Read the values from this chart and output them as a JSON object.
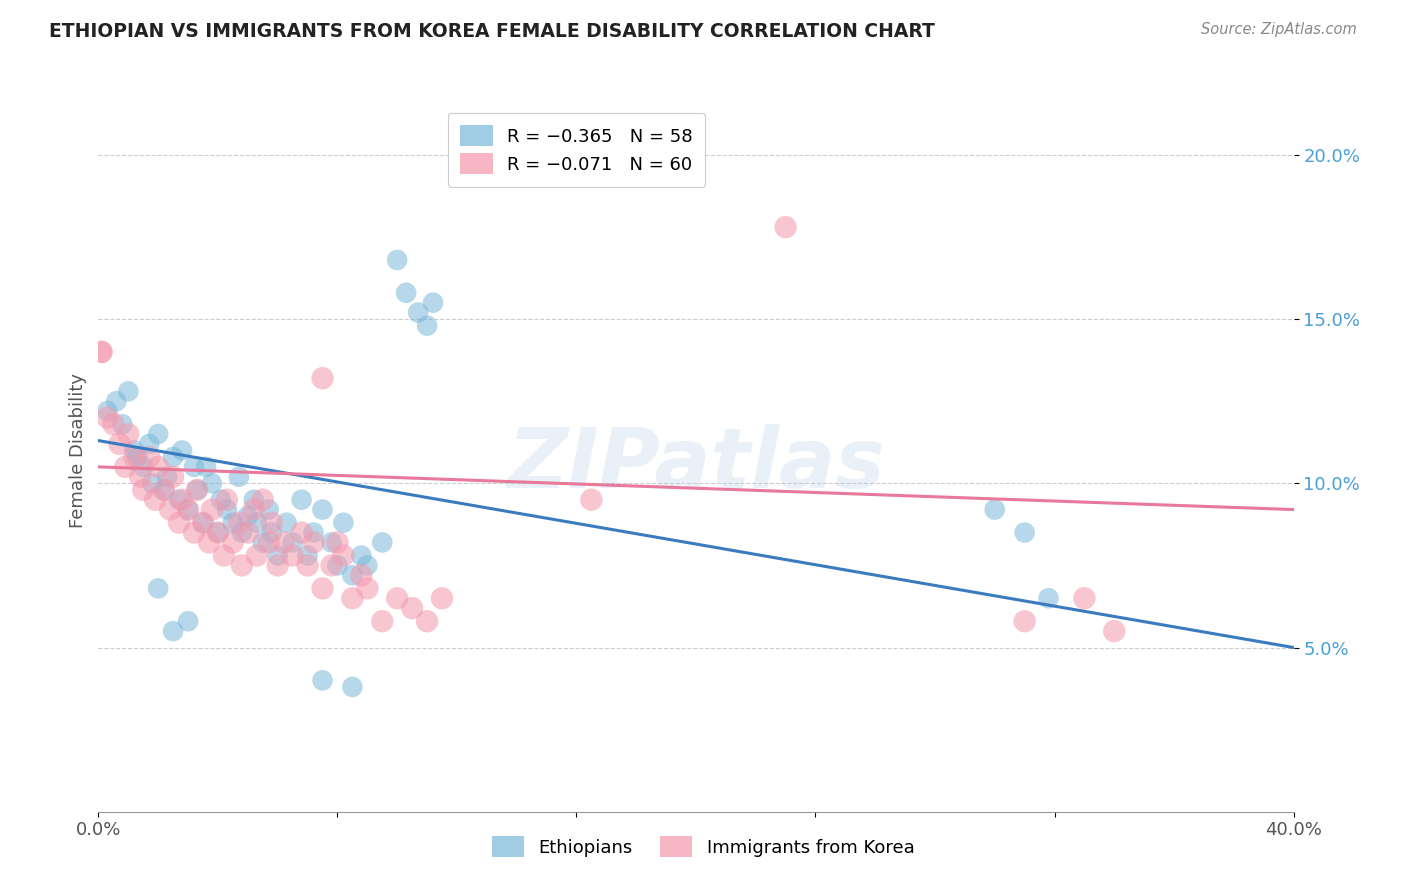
{
  "title": "ETHIOPIAN VS IMMIGRANTS FROM KOREA FEMALE DISABILITY CORRELATION CHART",
  "source": "Source: ZipAtlas.com",
  "ylabel": "Female Disability",
  "xlim": [
    0.0,
    0.4
  ],
  "ylim": [
    0.0,
    0.22
  ],
  "yticks": [
    0.05,
    0.1,
    0.15,
    0.2
  ],
  "blue_color": "#7ab8d9",
  "pink_color": "#f497ac",
  "blue_line_color": "#3a7bbf",
  "pink_line_color": "#e8799a",
  "watermark": "ZIPatlas",
  "background_color": "#ffffff",
  "ethiopians_data": [
    [
      0.003,
      0.122
    ],
    [
      0.006,
      0.125
    ],
    [
      0.008,
      0.118
    ],
    [
      0.01,
      0.128
    ],
    [
      0.012,
      0.11
    ],
    [
      0.013,
      0.108
    ],
    [
      0.015,
      0.105
    ],
    [
      0.017,
      0.112
    ],
    [
      0.018,
      0.1
    ],
    [
      0.02,
      0.115
    ],
    [
      0.022,
      0.098
    ],
    [
      0.023,
      0.102
    ],
    [
      0.025,
      0.108
    ],
    [
      0.027,
      0.095
    ],
    [
      0.028,
      0.11
    ],
    [
      0.03,
      0.092
    ],
    [
      0.032,
      0.105
    ],
    [
      0.033,
      0.098
    ],
    [
      0.035,
      0.088
    ],
    [
      0.036,
      0.105
    ],
    [
      0.038,
      0.1
    ],
    [
      0.04,
      0.085
    ],
    [
      0.041,
      0.095
    ],
    [
      0.043,
      0.092
    ],
    [
      0.045,
      0.088
    ],
    [
      0.047,
      0.102
    ],
    [
      0.048,
      0.085
    ],
    [
      0.05,
      0.09
    ],
    [
      0.052,
      0.095
    ],
    [
      0.053,
      0.088
    ],
    [
      0.055,
      0.082
    ],
    [
      0.057,
      0.092
    ],
    [
      0.058,
      0.085
    ],
    [
      0.06,
      0.078
    ],
    [
      0.063,
      0.088
    ],
    [
      0.065,
      0.082
    ],
    [
      0.068,
      0.095
    ],
    [
      0.07,
      0.078
    ],
    [
      0.072,
      0.085
    ],
    [
      0.075,
      0.092
    ],
    [
      0.078,
      0.082
    ],
    [
      0.08,
      0.075
    ],
    [
      0.082,
      0.088
    ],
    [
      0.085,
      0.072
    ],
    [
      0.088,
      0.078
    ],
    [
      0.09,
      0.075
    ],
    [
      0.095,
      0.082
    ],
    [
      0.1,
      0.168
    ],
    [
      0.103,
      0.158
    ],
    [
      0.107,
      0.152
    ],
    [
      0.11,
      0.148
    ],
    [
      0.112,
      0.155
    ],
    [
      0.02,
      0.068
    ],
    [
      0.025,
      0.055
    ],
    [
      0.03,
      0.058
    ],
    [
      0.3,
      0.092
    ],
    [
      0.31,
      0.085
    ],
    [
      0.318,
      0.065
    ],
    [
      0.075,
      0.04
    ],
    [
      0.085,
      0.038
    ]
  ],
  "korea_data": [
    [
      0.001,
      0.14
    ],
    [
      0.003,
      0.12
    ],
    [
      0.005,
      0.118
    ],
    [
      0.007,
      0.112
    ],
    [
      0.009,
      0.105
    ],
    [
      0.01,
      0.115
    ],
    [
      0.012,
      0.108
    ],
    [
      0.014,
      0.102
    ],
    [
      0.015,
      0.098
    ],
    [
      0.017,
      0.108
    ],
    [
      0.019,
      0.095
    ],
    [
      0.02,
      0.105
    ],
    [
      0.022,
      0.098
    ],
    [
      0.024,
      0.092
    ],
    [
      0.025,
      0.102
    ],
    [
      0.027,
      0.088
    ],
    [
      0.028,
      0.095
    ],
    [
      0.03,
      0.092
    ],
    [
      0.032,
      0.085
    ],
    [
      0.033,
      0.098
    ],
    [
      0.035,
      0.088
    ],
    [
      0.037,
      0.082
    ],
    [
      0.038,
      0.092
    ],
    [
      0.04,
      0.085
    ],
    [
      0.042,
      0.078
    ],
    [
      0.043,
      0.095
    ],
    [
      0.045,
      0.082
    ],
    [
      0.047,
      0.088
    ],
    [
      0.048,
      0.075
    ],
    [
      0.05,
      0.085
    ],
    [
      0.052,
      0.092
    ],
    [
      0.053,
      0.078
    ],
    [
      0.055,
      0.095
    ],
    [
      0.057,
      0.082
    ],
    [
      0.058,
      0.088
    ],
    [
      0.06,
      0.075
    ],
    [
      0.062,
      0.082
    ],
    [
      0.065,
      0.078
    ],
    [
      0.068,
      0.085
    ],
    [
      0.07,
      0.075
    ],
    [
      0.072,
      0.082
    ],
    [
      0.075,
      0.068
    ],
    [
      0.078,
      0.075
    ],
    [
      0.08,
      0.082
    ],
    [
      0.082,
      0.078
    ],
    [
      0.085,
      0.065
    ],
    [
      0.088,
      0.072
    ],
    [
      0.09,
      0.068
    ],
    [
      0.095,
      0.058
    ],
    [
      0.1,
      0.065
    ],
    [
      0.105,
      0.062
    ],
    [
      0.11,
      0.058
    ],
    [
      0.001,
      0.14
    ],
    [
      0.075,
      0.132
    ],
    [
      0.115,
      0.065
    ],
    [
      0.165,
      0.095
    ],
    [
      0.23,
      0.178
    ],
    [
      0.31,
      0.058
    ],
    [
      0.33,
      0.065
    ],
    [
      0.34,
      0.055
    ]
  ],
  "blue_line_x": [
    0.0,
    0.4
  ],
  "blue_line_y": [
    0.113,
    0.05
  ],
  "pink_line_x": [
    0.0,
    0.4
  ],
  "pink_line_y": [
    0.105,
    0.092
  ]
}
